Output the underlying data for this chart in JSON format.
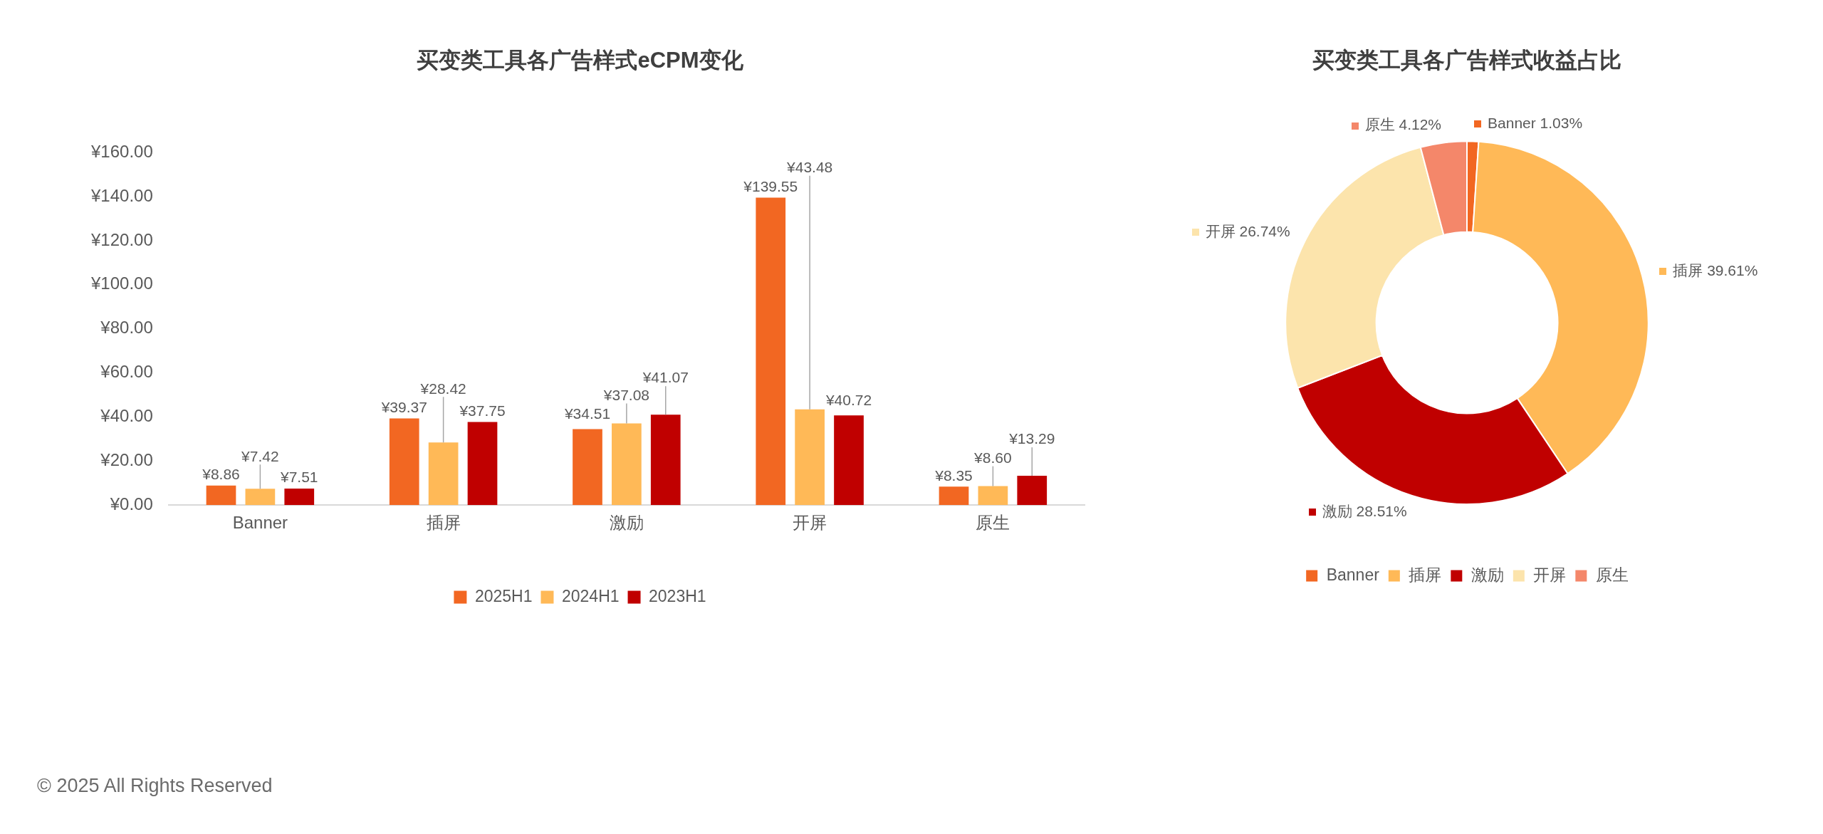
{
  "chart_data": [
    {
      "type": "bar",
      "title": "买变类工具各广告样式eCPM变化",
      "categories": [
        "Banner",
        "插屏",
        "激励",
        "开屏",
        "原生"
      ],
      "series": [
        {
          "name": "2025H1",
          "color": "#f26722",
          "values": [
            8.86,
            39.37,
            34.51,
            139.55,
            8.35
          ],
          "value_labels": [
            "¥8.86",
            "¥39.37",
            "¥34.51",
            "¥139.55",
            "¥8.35"
          ]
        },
        {
          "name": "2024H1",
          "color": "#ffb957",
          "values": [
            7.42,
            28.42,
            37.08,
            43.48,
            8.6
          ],
          "value_labels": [
            "¥7.42",
            "¥28.42",
            "¥37.08",
            "¥43.48",
            "¥8.60"
          ]
        },
        {
          "name": "2023H1",
          "color": "#c00000",
          "values": [
            7.51,
            37.75,
            41.07,
            40.72,
            13.29
          ],
          "value_labels": [
            "¥7.51",
            "¥37.75",
            "¥41.07",
            "¥40.72",
            "¥13.29"
          ]
        }
      ],
      "ylim": [
        0,
        160
      ],
      "yticks": [
        {
          "value": 0,
          "label": "¥0.00"
        },
        {
          "value": 20,
          "label": "¥20.00"
        },
        {
          "value": 40,
          "label": "¥40.00"
        },
        {
          "value": 60,
          "label": "¥60.00"
        },
        {
          "value": 80,
          "label": "¥80.00"
        },
        {
          "value": 100,
          "label": "¥100.00"
        },
        {
          "value": 120,
          "label": "¥120.00"
        },
        {
          "value": 140,
          "label": "¥140.00"
        },
        {
          "value": 160,
          "label": "¥160.00"
        }
      ],
      "grid": false,
      "legend": "bottom",
      "annotations": [
        "© 2025 All Rights Reserved"
      ]
    },
    {
      "type": "donut",
      "title": "买变类工具各广告样式收益占比",
      "categories": [
        "Banner",
        "插屏",
        "激励",
        "开屏",
        "原生"
      ],
      "values": [
        1.03,
        39.61,
        28.51,
        26.74,
        4.12
      ],
      "colors": [
        "#f26722",
        "#ffb957",
        "#c00000",
        "#fce4ac",
        "#f4876a"
      ],
      "value_labels": [
        "1.03%",
        "39.61%",
        "28.51%",
        "26.74%",
        "4.12%"
      ],
      "legend": "bottom"
    }
  ]
}
